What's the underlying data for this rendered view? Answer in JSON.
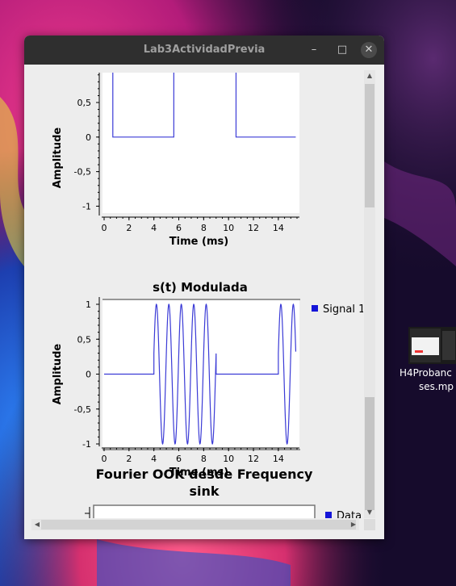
{
  "window": {
    "title": "Lab3ActividadPrevia",
    "minimize_glyph": "–",
    "maximize_glyph": "□",
    "close_glyph": "✕"
  },
  "desktop": {
    "file_icon": {
      "label_line1": "H4Probanc",
      "label_line2": "ses.mp"
    }
  },
  "scrollbars": {
    "up_arrow": "▲",
    "down_arrow": "▼",
    "left_arrow": "◀",
    "right_arrow": "▶"
  },
  "chart_data": [
    {
      "type": "line",
      "title": "",
      "xlabel": "Time (ms)",
      "ylabel": "Amplitude",
      "x_ticks": [
        0,
        2,
        4,
        6,
        8,
        10,
        12,
        14
      ],
      "y_ticks": [
        "-1",
        "-0,5",
        "0",
        "0,5"
      ],
      "xlim": [
        0,
        15.5
      ],
      "ylim": [
        -1.1,
        0.5
      ],
      "series": [
        {
          "color": "#3b3bd6",
          "x": [
            0.7,
            0.7,
            5.6,
            5.6,
            10.6,
            10.6,
            15.4
          ],
          "y": [
            1,
            0,
            0,
            1,
            1,
            0,
            0
          ]
        }
      ]
    },
    {
      "type": "line",
      "title": "s(t) Modulada",
      "xlabel": "Time (ms)",
      "ylabel": "Amplitude",
      "x_ticks": [
        0,
        2,
        4,
        6,
        8,
        10,
        12,
        14
      ],
      "y_ticks": [
        "-1",
        "-0,5",
        "0",
        "0,5",
        "1"
      ],
      "xlim": [
        0,
        15.5
      ],
      "ylim": [
        -1,
        1
      ],
      "legend": [
        "Signal 1"
      ],
      "legend_position": "right",
      "series": [
        {
          "name": "Signal 1",
          "color": "#3b3bd6",
          "segments": [
            {
              "type": "zero",
              "x0": 0,
              "x1": 4.0
            },
            {
              "type": "sine",
              "x0": 4.0,
              "x1": 9.0,
              "freq_khz": 1.0,
              "amplitude": 1
            },
            {
              "type": "zero",
              "x0": 9.0,
              "x1": 14.0
            },
            {
              "type": "sine",
              "x0": 14.0,
              "x1": 15.4,
              "freq_khz": 1.0,
              "amplitude": 1
            }
          ]
        }
      ]
    },
    {
      "type": "line",
      "title": "Fourier OOK desde Frequency sink",
      "title_line1": "Fourier OOK desde Frequency",
      "title_line2": "sink",
      "legend": [
        "Data"
      ],
      "legend_position": "right",
      "series": []
    }
  ]
}
